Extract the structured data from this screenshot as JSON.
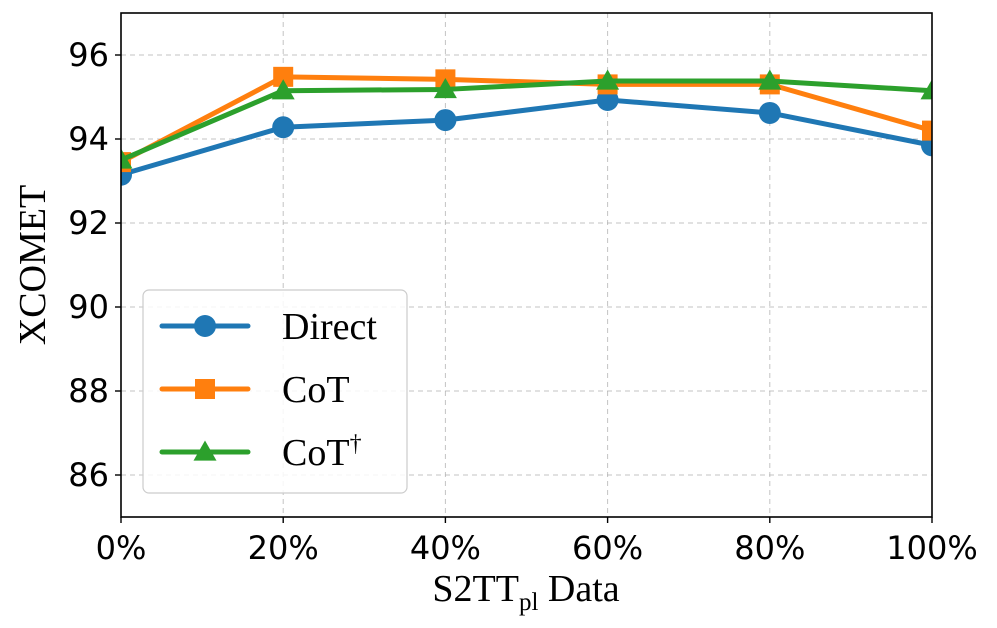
{
  "chart_data": {
    "type": "line",
    "x": [
      0,
      20,
      40,
      60,
      80,
      100
    ],
    "x_tick_labels": [
      "0%",
      "20%",
      "40%",
      "60%",
      "80%",
      "100%"
    ],
    "xlim": [
      0,
      100
    ],
    "ylim": [
      85,
      97
    ],
    "y_ticks": [
      86,
      88,
      90,
      92,
      94,
      96
    ],
    "y_tick_labels": [
      "86",
      "88",
      "90",
      "92",
      "94",
      "96"
    ],
    "xlabel_main": "S2TT",
    "xlabel_sub": "pl",
    "xlabel_tail": " Data",
    "ylabel": "XCOMET",
    "grid": true,
    "legend_position": "lower-left",
    "series": [
      {
        "name": "Direct",
        "marker": "circle",
        "color": "#1f77b4",
        "values": [
          93.15,
          94.28,
          94.45,
          94.93,
          94.62,
          93.85
        ]
      },
      {
        "name": "CoT",
        "marker": "square",
        "color": "#ff7f0e",
        "values": [
          93.45,
          95.48,
          95.42,
          95.3,
          95.3,
          94.2
        ]
      },
      {
        "name": "CoT",
        "name_superscript": "†",
        "marker": "triangle",
        "color": "#2ca02c",
        "values": [
          93.5,
          95.15,
          95.18,
          95.38,
          95.38,
          95.15
        ]
      }
    ]
  }
}
